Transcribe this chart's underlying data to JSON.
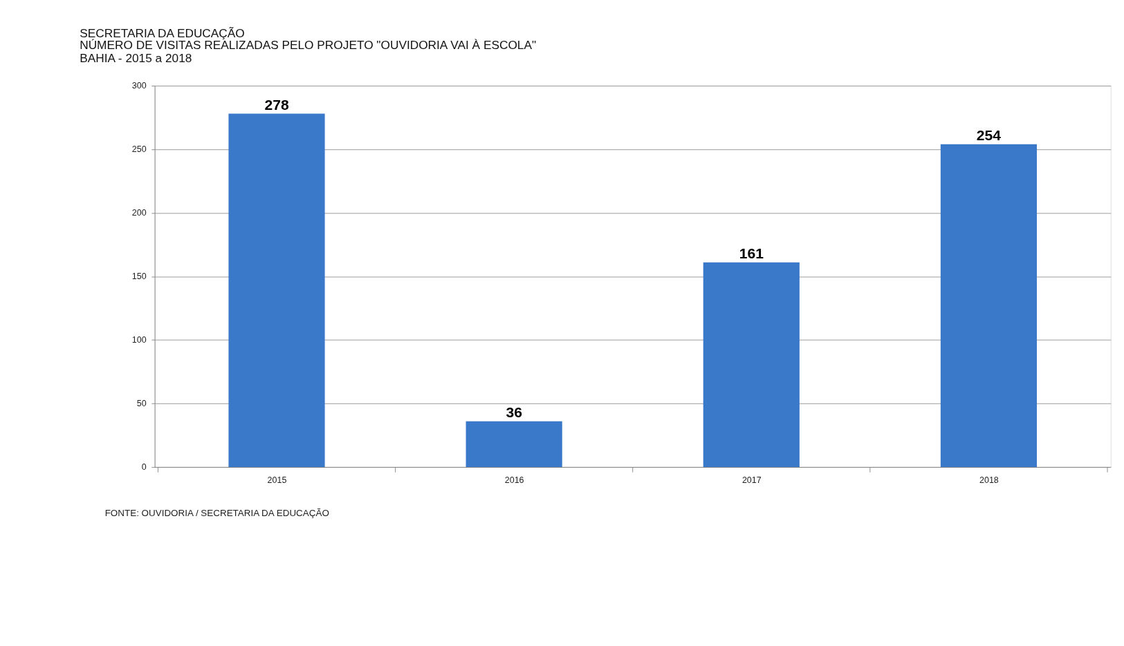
{
  "chart_data": {
    "type": "bar",
    "title": "SECRETARIA  DA EDUCAÇÃO",
    "subtitle": [
      "NÚMERO DE VISITAS  REALIZADAS PELO PROJETO  \"OUVIDORIA  VAI À ESCOLA\"",
      "BAHIA - 2015 a 2018"
    ],
    "categories": [
      "2015",
      "2016",
      "2017",
      "2018"
    ],
    "values": [
      278,
      36,
      161,
      254
    ],
    "color": "#3a78c9",
    "ylim": [
      0,
      300
    ],
    "yticks": [
      0,
      50,
      100,
      150,
      200,
      250,
      300
    ],
    "grid": "y",
    "data_labels": true,
    "annotations": [
      "FONTE: OUVIDORIA / SECRETARIA DA EDUCAÇÃO"
    ]
  }
}
